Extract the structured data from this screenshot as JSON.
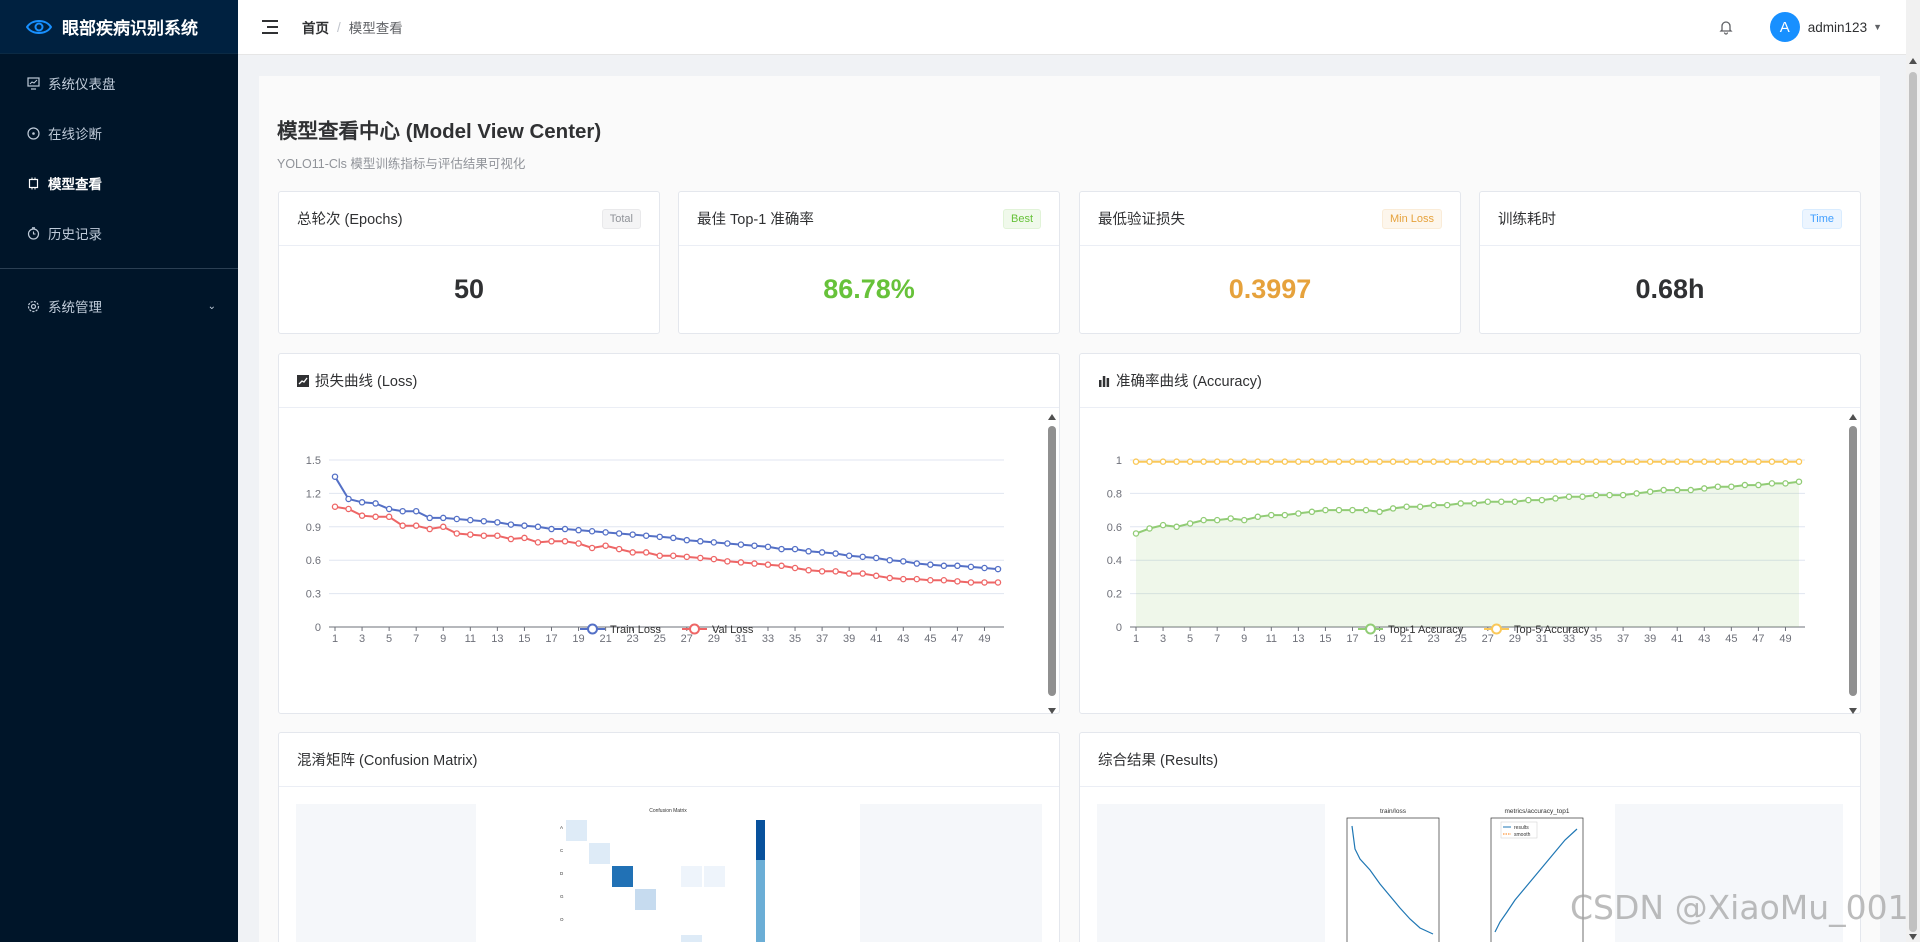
{
  "sidebar": {
    "title": "眼部疾病识别系统",
    "items": [
      {
        "label": "系统仪表盘",
        "icon": "dashboard-icon"
      },
      {
        "label": "在线诊断",
        "icon": "compass-icon"
      },
      {
        "label": "模型查看",
        "icon": "cpu-icon",
        "active": true
      },
      {
        "label": "历史记录",
        "icon": "clock-icon"
      }
    ],
    "system": {
      "label": "系统管理",
      "icon": "gear-icon"
    }
  },
  "header": {
    "breadcrumb_home": "首页",
    "breadcrumb_sep": "/",
    "breadcrumb_current": "模型查看",
    "avatar_letter": "A",
    "username": "admin123"
  },
  "page": {
    "title": "模型查看中心 (Model View Center)",
    "subtitle": "YOLO11-Cls 模型训练指标与评估结果可视化"
  },
  "stats": [
    {
      "label": "总轮次 (Epochs)",
      "tag": "Total",
      "value": "50",
      "color": "#303133"
    },
    {
      "label": "最佳 Top-1 准确率",
      "tag": "Best",
      "value": "86.78%",
      "color": "#67c23a"
    },
    {
      "label": "最低验证损失",
      "tag": "Min Loss",
      "value": "0.3997",
      "color": "#e6a23c"
    },
    {
      "label": "训练耗时",
      "tag": "Time",
      "value": "0.68h",
      "color": "#303133"
    }
  ],
  "cards": {
    "loss_title": "损失曲线 (Loss)",
    "acc_title": "准确率曲线 (Accuracy)",
    "cm_title": "混淆矩阵 (Confusion Matrix)",
    "results_title": "综合结果 (Results)"
  },
  "chart_data": [
    {
      "type": "line",
      "title": "",
      "x": [
        1,
        2,
        3,
        4,
        5,
        6,
        7,
        8,
        9,
        10,
        11,
        12,
        13,
        14,
        15,
        16,
        17,
        18,
        19,
        20,
        21,
        22,
        23,
        24,
        25,
        26,
        27,
        28,
        29,
        30,
        31,
        32,
        33,
        34,
        35,
        36,
        37,
        38,
        39,
        40,
        41,
        42,
        43,
        44,
        45,
        46,
        47,
        48,
        49,
        50
      ],
      "xticks": [
        1,
        3,
        5,
        7,
        9,
        11,
        13,
        15,
        17,
        19,
        21,
        23,
        25,
        27,
        29,
        31,
        33,
        35,
        37,
        39,
        41,
        43,
        45,
        47,
        49
      ],
      "ylim": [
        0,
        1.5
      ],
      "yticks": [
        0,
        0.3,
        0.6,
        0.9,
        1.2,
        1.5
      ],
      "legend": "bottom-center",
      "series": [
        {
          "name": "Train Loss",
          "color": "#5470c6",
          "values": [
            1.35,
            1.15,
            1.12,
            1.11,
            1.06,
            1.04,
            1.04,
            0.98,
            0.98,
            0.97,
            0.96,
            0.95,
            0.94,
            0.92,
            0.91,
            0.9,
            0.88,
            0.88,
            0.87,
            0.86,
            0.85,
            0.84,
            0.83,
            0.82,
            0.81,
            0.8,
            0.78,
            0.77,
            0.76,
            0.75,
            0.74,
            0.73,
            0.72,
            0.7,
            0.7,
            0.68,
            0.67,
            0.66,
            0.64,
            0.63,
            0.62,
            0.6,
            0.59,
            0.57,
            0.56,
            0.55,
            0.55,
            0.54,
            0.53,
            0.52
          ]
        },
        {
          "name": "Val Loss",
          "color": "#ee6666",
          "values": [
            1.08,
            1.06,
            1.0,
            0.99,
            0.99,
            0.91,
            0.91,
            0.88,
            0.9,
            0.84,
            0.83,
            0.82,
            0.82,
            0.79,
            0.8,
            0.76,
            0.77,
            0.77,
            0.75,
            0.71,
            0.73,
            0.7,
            0.67,
            0.67,
            0.64,
            0.64,
            0.63,
            0.62,
            0.61,
            0.59,
            0.58,
            0.57,
            0.56,
            0.55,
            0.53,
            0.51,
            0.5,
            0.5,
            0.48,
            0.48,
            0.46,
            0.44,
            0.43,
            0.43,
            0.42,
            0.42,
            0.41,
            0.4,
            0.4,
            0.4
          ]
        }
      ]
    },
    {
      "type": "area",
      "title": "",
      "x": [
        1,
        2,
        3,
        4,
        5,
        6,
        7,
        8,
        9,
        10,
        11,
        12,
        13,
        14,
        15,
        16,
        17,
        18,
        19,
        20,
        21,
        22,
        23,
        24,
        25,
        26,
        27,
        28,
        29,
        30,
        31,
        32,
        33,
        34,
        35,
        36,
        37,
        38,
        39,
        40,
        41,
        42,
        43,
        44,
        45,
        46,
        47,
        48,
        49,
        50
      ],
      "xticks": [
        1,
        3,
        5,
        7,
        9,
        11,
        13,
        15,
        17,
        19,
        21,
        23,
        25,
        27,
        29,
        31,
        33,
        35,
        37,
        39,
        41,
        43,
        45,
        47,
        49
      ],
      "ylim": [
        0,
        1
      ],
      "yticks": [
        0,
        0.2,
        0.4,
        0.6,
        0.8,
        1
      ],
      "legend": "bottom-center",
      "series": [
        {
          "name": "Top-1 Accuracy",
          "color": "#91cc75",
          "values": [
            0.56,
            0.59,
            0.61,
            0.6,
            0.62,
            0.64,
            0.64,
            0.65,
            0.64,
            0.66,
            0.67,
            0.67,
            0.68,
            0.69,
            0.7,
            0.7,
            0.7,
            0.7,
            0.69,
            0.71,
            0.72,
            0.72,
            0.73,
            0.73,
            0.74,
            0.74,
            0.75,
            0.75,
            0.75,
            0.76,
            0.76,
            0.77,
            0.78,
            0.78,
            0.79,
            0.79,
            0.79,
            0.8,
            0.81,
            0.82,
            0.82,
            0.82,
            0.83,
            0.84,
            0.84,
            0.85,
            0.85,
            0.86,
            0.86,
            0.87
          ]
        },
        {
          "name": "Top-5 Accuracy",
          "color": "#fac858",
          "values": [
            0.99,
            0.99,
            0.99,
            0.99,
            0.99,
            0.99,
            0.99,
            0.99,
            0.99,
            0.99,
            0.99,
            0.99,
            0.99,
            0.99,
            0.99,
            0.99,
            0.99,
            0.99,
            0.99,
            0.99,
            0.99,
            0.99,
            0.99,
            0.99,
            0.99,
            0.99,
            0.99,
            0.99,
            0.99,
            0.99,
            0.99,
            0.99,
            0.99,
            0.99,
            0.99,
            0.99,
            0.99,
            0.99,
            0.99,
            0.99,
            0.99,
            0.99,
            0.99,
            0.99,
            0.99,
            0.99,
            0.99,
            0.99,
            0.99,
            0.99
          ]
        }
      ]
    }
  ],
  "results_img": {
    "plot1_title": "train/loss",
    "plot2_title": "metrics/accuracy_top1",
    "legend1": "results",
    "legend2": "smooth"
  },
  "cm_img": {
    "title": "Confusion Matrix",
    "rows": [
      "A",
      "C",
      "D",
      "G",
      "O"
    ]
  },
  "watermark": "CSDN @XiaoMu_001"
}
